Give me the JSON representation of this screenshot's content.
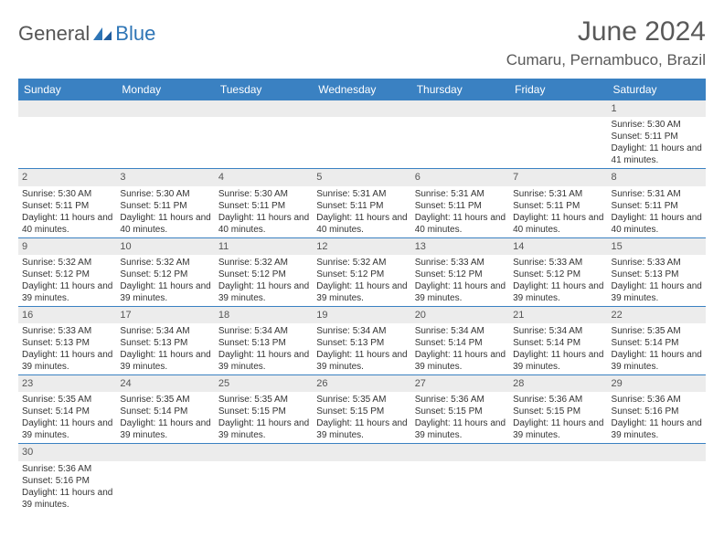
{
  "brand": {
    "part1": "General",
    "part2": "Blue"
  },
  "title": "June 2024",
  "location": "Cumaru, Pernambuco, Brazil",
  "colors": {
    "header_bg": "#3a81c2",
    "header_text": "#ffffff",
    "daynum_bg": "#ececec",
    "text": "#333333",
    "title_text": "#595959",
    "row_border": "#3a81c2",
    "brand_blue": "#2e75b6"
  },
  "weekdays": [
    "Sunday",
    "Monday",
    "Tuesday",
    "Wednesday",
    "Thursday",
    "Friday",
    "Saturday"
  ],
  "weeks": [
    [
      null,
      null,
      null,
      null,
      null,
      null,
      {
        "n": "1",
        "sunrise": "5:30 AM",
        "sunset": "5:11 PM",
        "daylight": "11 hours and 41 minutes."
      }
    ],
    [
      {
        "n": "2",
        "sunrise": "5:30 AM",
        "sunset": "5:11 PM",
        "daylight": "11 hours and 40 minutes."
      },
      {
        "n": "3",
        "sunrise": "5:30 AM",
        "sunset": "5:11 PM",
        "daylight": "11 hours and 40 minutes."
      },
      {
        "n": "4",
        "sunrise": "5:30 AM",
        "sunset": "5:11 PM",
        "daylight": "11 hours and 40 minutes."
      },
      {
        "n": "5",
        "sunrise": "5:31 AM",
        "sunset": "5:11 PM",
        "daylight": "11 hours and 40 minutes."
      },
      {
        "n": "6",
        "sunrise": "5:31 AM",
        "sunset": "5:11 PM",
        "daylight": "11 hours and 40 minutes."
      },
      {
        "n": "7",
        "sunrise": "5:31 AM",
        "sunset": "5:11 PM",
        "daylight": "11 hours and 40 minutes."
      },
      {
        "n": "8",
        "sunrise": "5:31 AM",
        "sunset": "5:11 PM",
        "daylight": "11 hours and 40 minutes."
      }
    ],
    [
      {
        "n": "9",
        "sunrise": "5:32 AM",
        "sunset": "5:12 PM",
        "daylight": "11 hours and 39 minutes."
      },
      {
        "n": "10",
        "sunrise": "5:32 AM",
        "sunset": "5:12 PM",
        "daylight": "11 hours and 39 minutes."
      },
      {
        "n": "11",
        "sunrise": "5:32 AM",
        "sunset": "5:12 PM",
        "daylight": "11 hours and 39 minutes."
      },
      {
        "n": "12",
        "sunrise": "5:32 AM",
        "sunset": "5:12 PM",
        "daylight": "11 hours and 39 minutes."
      },
      {
        "n": "13",
        "sunrise": "5:33 AM",
        "sunset": "5:12 PM",
        "daylight": "11 hours and 39 minutes."
      },
      {
        "n": "14",
        "sunrise": "5:33 AM",
        "sunset": "5:12 PM",
        "daylight": "11 hours and 39 minutes."
      },
      {
        "n": "15",
        "sunrise": "5:33 AM",
        "sunset": "5:13 PM",
        "daylight": "11 hours and 39 minutes."
      }
    ],
    [
      {
        "n": "16",
        "sunrise": "5:33 AM",
        "sunset": "5:13 PM",
        "daylight": "11 hours and 39 minutes."
      },
      {
        "n": "17",
        "sunrise": "5:34 AM",
        "sunset": "5:13 PM",
        "daylight": "11 hours and 39 minutes."
      },
      {
        "n": "18",
        "sunrise": "5:34 AM",
        "sunset": "5:13 PM",
        "daylight": "11 hours and 39 minutes."
      },
      {
        "n": "19",
        "sunrise": "5:34 AM",
        "sunset": "5:13 PM",
        "daylight": "11 hours and 39 minutes."
      },
      {
        "n": "20",
        "sunrise": "5:34 AM",
        "sunset": "5:14 PM",
        "daylight": "11 hours and 39 minutes."
      },
      {
        "n": "21",
        "sunrise": "5:34 AM",
        "sunset": "5:14 PM",
        "daylight": "11 hours and 39 minutes."
      },
      {
        "n": "22",
        "sunrise": "5:35 AM",
        "sunset": "5:14 PM",
        "daylight": "11 hours and 39 minutes."
      }
    ],
    [
      {
        "n": "23",
        "sunrise": "5:35 AM",
        "sunset": "5:14 PM",
        "daylight": "11 hours and 39 minutes."
      },
      {
        "n": "24",
        "sunrise": "5:35 AM",
        "sunset": "5:14 PM",
        "daylight": "11 hours and 39 minutes."
      },
      {
        "n": "25",
        "sunrise": "5:35 AM",
        "sunset": "5:15 PM",
        "daylight": "11 hours and 39 minutes."
      },
      {
        "n": "26",
        "sunrise": "5:35 AM",
        "sunset": "5:15 PM",
        "daylight": "11 hours and 39 minutes."
      },
      {
        "n": "27",
        "sunrise": "5:36 AM",
        "sunset": "5:15 PM",
        "daylight": "11 hours and 39 minutes."
      },
      {
        "n": "28",
        "sunrise": "5:36 AM",
        "sunset": "5:15 PM",
        "daylight": "11 hours and 39 minutes."
      },
      {
        "n": "29",
        "sunrise": "5:36 AM",
        "sunset": "5:16 PM",
        "daylight": "11 hours and 39 minutes."
      }
    ],
    [
      {
        "n": "30",
        "sunrise": "5:36 AM",
        "sunset": "5:16 PM",
        "daylight": "11 hours and 39 minutes."
      },
      null,
      null,
      null,
      null,
      null,
      null
    ]
  ],
  "labels": {
    "sunrise": "Sunrise: ",
    "sunset": "Sunset: ",
    "daylight": "Daylight: "
  }
}
